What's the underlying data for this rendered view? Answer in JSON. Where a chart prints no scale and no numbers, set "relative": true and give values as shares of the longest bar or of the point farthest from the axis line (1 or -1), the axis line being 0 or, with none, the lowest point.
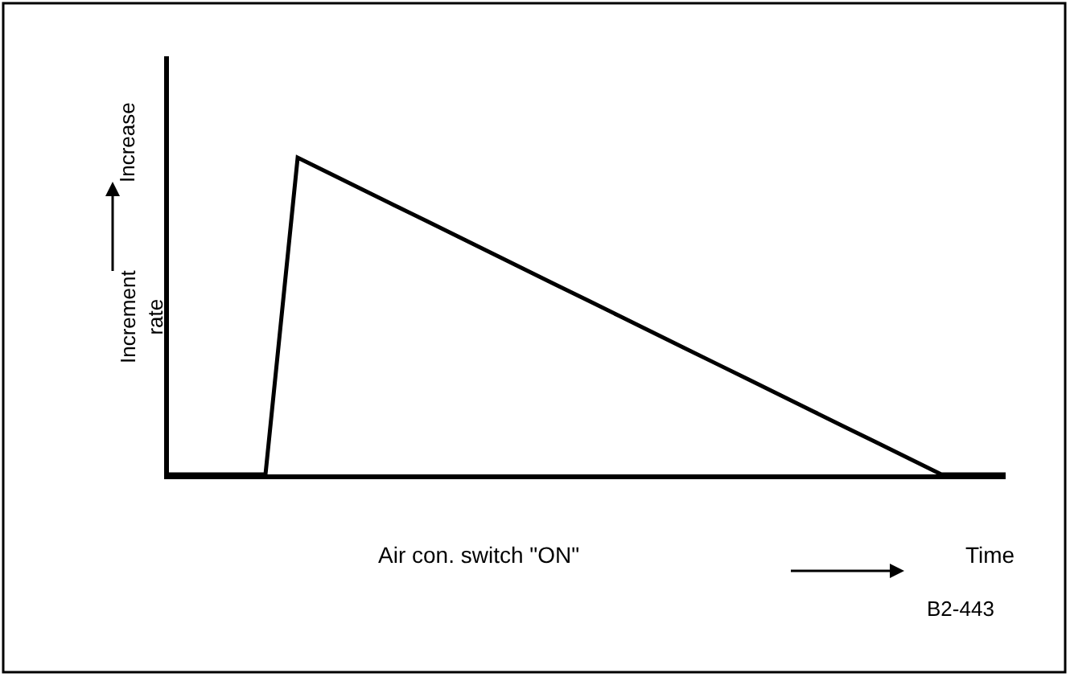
{
  "chart_data": {
    "type": "line",
    "relative": true,
    "color": "#000000",
    "marker": "none",
    "line_style": "solid",
    "legend": false,
    "xlabel": "Time",
    "ylabel": "Increment rate",
    "annotations": [
      "Air con. switch \"ON\"",
      "Increase",
      "B2-443"
    ],
    "categories": [
      null,
      null,
      null,
      null,
      null,
      null,
      null,
      null,
      null,
      null,
      null,
      null,
      null,
      null,
      null,
      null,
      null,
      null,
      null,
      null,
      null,
      null,
      null,
      null,
      null,
      null,
      null
    ],
    "values": [
      0,
      0,
      0,
      0,
      1,
      0.95,
      0.9,
      0.85,
      0.8,
      0.75,
      0.7,
      0.65,
      0.6,
      0.55,
      0.5,
      0.45,
      0.4,
      0.35,
      0.3,
      0.25,
      0.2,
      0.15,
      0.1,
      0.05,
      0,
      0,
      0
    ]
  }
}
